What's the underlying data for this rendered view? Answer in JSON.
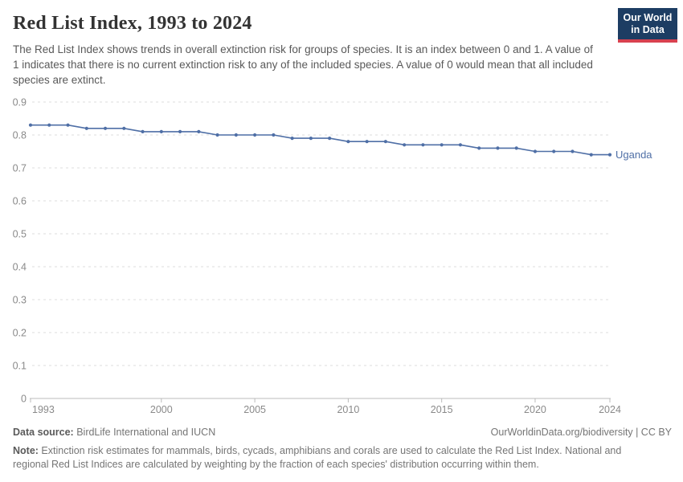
{
  "header": {
    "title": "Red List Index, 1993 to 2024",
    "subtitle": "The Red List Index shows trends in overall extinction risk for groups of species. It is an index between 0 and 1. A value of 1 indicates that there is no current extinction risk to any of the included species. A value of 0 would mean that all included species are extinct.",
    "logo": {
      "line1": "Our World",
      "line2": "in Data",
      "bg_color": "#1d3d63",
      "accent_color": "#d8414f"
    }
  },
  "chart_data": {
    "type": "line",
    "title": "Red List Index, 1993 to 2024",
    "xlabel": "",
    "ylabel": "",
    "xlim": [
      1993,
      2024
    ],
    "ylim": [
      0,
      0.9
    ],
    "grid": "horizontal-dashed",
    "legend_position": "end-of-line-label",
    "x_tick_labels": [
      1993,
      2000,
      2005,
      2010,
      2015,
      2020,
      2024
    ],
    "y_tick_values": [
      0,
      0.1,
      0.2,
      0.3,
      0.4,
      0.5,
      0.6,
      0.7,
      0.8,
      0.9
    ],
    "x": [
      1993,
      1994,
      1995,
      1996,
      1997,
      1998,
      1999,
      2000,
      2001,
      2002,
      2003,
      2004,
      2005,
      2006,
      2007,
      2008,
      2009,
      2010,
      2011,
      2012,
      2013,
      2014,
      2015,
      2016,
      2017,
      2018,
      2019,
      2020,
      2021,
      2022,
      2023,
      2024
    ],
    "series": [
      {
        "name": "Uganda",
        "color": "#4f6fa6",
        "values": [
          0.83,
          0.83,
          0.83,
          0.82,
          0.82,
          0.82,
          0.81,
          0.81,
          0.81,
          0.81,
          0.8,
          0.8,
          0.8,
          0.8,
          0.79,
          0.79,
          0.79,
          0.78,
          0.78,
          0.78,
          0.77,
          0.77,
          0.77,
          0.77,
          0.76,
          0.76,
          0.76,
          0.75,
          0.75,
          0.75,
          0.74,
          0.74
        ]
      }
    ],
    "colors": {
      "gridline": "#dcdcdc",
      "axis": "#bbbbbb",
      "tick_label": "#8a8a8a"
    }
  },
  "footer": {
    "data_source_label": "Data source:",
    "data_source": " BirdLife International and IUCN",
    "attribution": "OurWorldinData.org/biodiversity | CC BY",
    "note_label": "Note:",
    "note": " Extinction risk estimates for mammals, birds, cycads, amphibians and corals are used to calculate the Red List Index. National and regional Red List Indices are calculated by weighting by the fraction of each species' distribution occurring within them."
  }
}
